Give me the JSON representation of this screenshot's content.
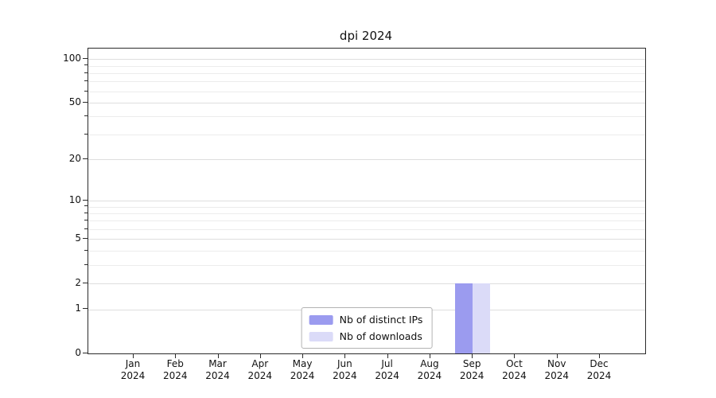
{
  "title": "dpi 2024",
  "chart_data": {
    "type": "bar",
    "title": "dpi 2024",
    "categories": [
      "Jan",
      "Feb",
      "Mar",
      "Apr",
      "May",
      "Jun",
      "Jul",
      "Aug",
      "Sep",
      "Oct",
      "Nov",
      "Dec"
    ],
    "year": "2024",
    "series": [
      {
        "name": "Nb of distinct IPs",
        "color": "#9b9bef",
        "values": [
          0,
          0,
          0,
          0,
          0,
          0,
          0,
          0,
          2,
          0,
          0,
          0
        ]
      },
      {
        "name": "Nb of downloads",
        "color": "#dbdbf8",
        "values": [
          0,
          0,
          0,
          0,
          0,
          0,
          0,
          0,
          2,
          0,
          0,
          0
        ]
      }
    ],
    "yscale": "log1p",
    "ylim": [
      0,
      100
    ],
    "yticks_major": [
      0,
      1,
      2,
      5,
      10,
      20,
      50,
      100
    ],
    "yticks_minor": [
      3,
      4,
      6,
      7,
      8,
      9,
      30,
      40,
      60,
      70,
      80,
      90
    ],
    "grid": true,
    "legend": {
      "position": "lower center"
    }
  }
}
